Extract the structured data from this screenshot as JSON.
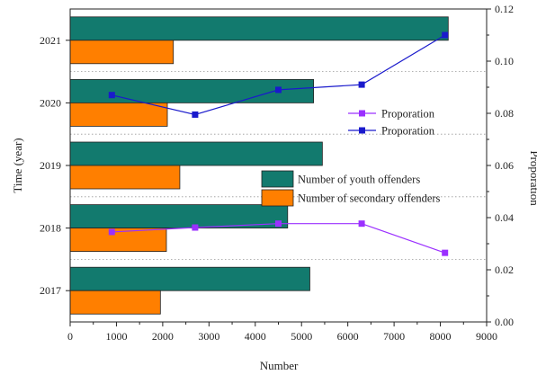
{
  "chart_data": {
    "type": "bar",
    "orientation": "horizontal",
    "categories": [
      "2017",
      "2018",
      "2019",
      "2020",
      "2021"
    ],
    "series": [
      {
        "name": "Number of youth offenders",
        "color": "#127a6e",
        "values": [
          5180,
          4700,
          5450,
          5260,
          8170
        ]
      },
      {
        "name": "Number of secondary offenders",
        "color": "#ff7f00",
        "values": [
          1950,
          2080,
          2370,
          2100,
          2230
        ]
      }
    ],
    "line_series": [
      {
        "name": "Proporation",
        "color": "#9b30ff",
        "points": [
          [
            900,
            0.0345
          ],
          [
            2700,
            0.0362
          ],
          [
            4500,
            0.0377
          ],
          [
            6300,
            0.0377
          ],
          [
            8100,
            0.0265
          ]
        ]
      },
      {
        "name": "Proporation",
        "color": "#1a1acc",
        "points": [
          [
            900,
            0.087
          ],
          [
            2700,
            0.0795
          ],
          [
            4500,
            0.089
          ],
          [
            6300,
            0.091
          ],
          [
            8100,
            0.11
          ]
        ]
      }
    ],
    "xlabel": "Number",
    "ylabel": "Time (year)",
    "y2label": "Proporation",
    "xlim": [
      0,
      9000
    ],
    "xticks": [
      "0",
      "1000",
      "2000",
      "3000",
      "4000",
      "5000",
      "6000",
      "7000",
      "8000",
      "9000"
    ],
    "y2lim": [
      0,
      0.12
    ],
    "y2ticks": [
      "0.00",
      "0.02",
      "0.04",
      "0.06",
      "0.08",
      "0.10",
      "0.12"
    ],
    "legend_placement": "center-right",
    "grid": false
  }
}
